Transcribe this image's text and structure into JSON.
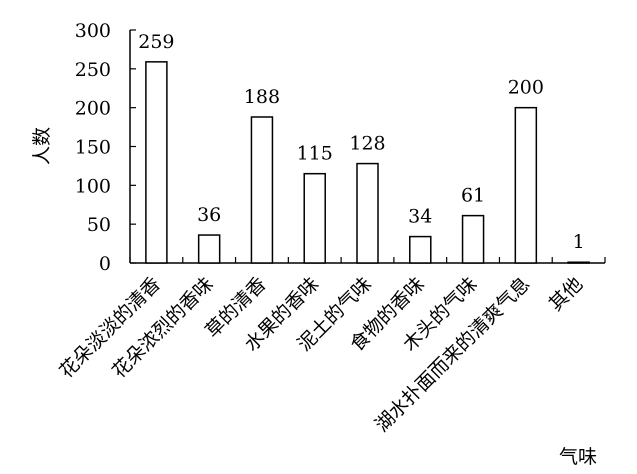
{
  "chart_data": {
    "type": "bar",
    "title": "",
    "xlabel": "气味",
    "ylabel": "人数",
    "ylim": [
      0,
      300
    ],
    "yticks": [
      0,
      50,
      100,
      150,
      200,
      250,
      300
    ],
    "grid": false,
    "categories": [
      "花朵淡淡的清香",
      "花朵浓烈的香味",
      "草的清香",
      "水果的香味",
      "泥土的气味",
      "食物的香味",
      "木头的气味",
      "湖水扑面而来的清爽气息",
      "其他"
    ],
    "values": [
      259,
      36,
      188,
      115,
      128,
      34,
      61,
      200,
      1
    ],
    "data_labels": [
      "259",
      "36",
      "188",
      "115",
      "128",
      "34",
      "61",
      "200",
      "1"
    ],
    "colors": {
      "bar_fill": "#ffffff",
      "bar_stroke": "#000000",
      "axis": "#000000"
    }
  }
}
